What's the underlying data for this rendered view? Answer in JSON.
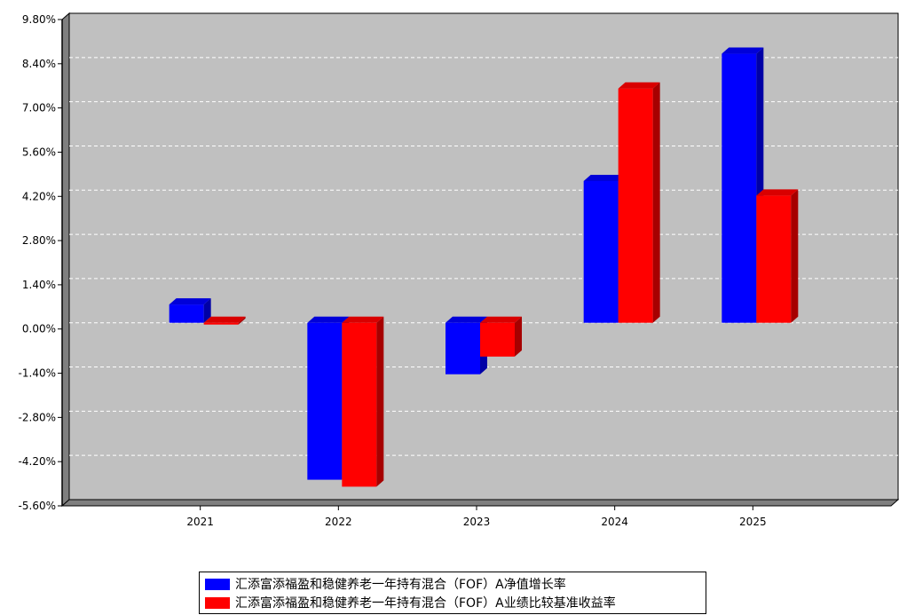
{
  "chart_data": {
    "type": "bar",
    "categories": [
      "2021",
      "2022",
      "2023",
      "2024",
      "2025"
    ],
    "series": [
      {
        "name": "汇添富添福盈和稳健养老一年持有混合（FOF）A净值增长率",
        "color": "#0000ff",
        "values": [
          0.58,
          -4.97,
          -1.63,
          4.49,
          8.52
        ]
      },
      {
        "name": "汇添富添福盈和稳健养老一年持有混合（FOF）A业绩比较基准收益率",
        "color": "#ff0000",
        "values": [
          -0.05,
          -5.19,
          -1.07,
          7.42,
          4.03
        ]
      }
    ],
    "y_ticks": [
      "9.80%",
      "8.40%",
      "7.00%",
      "5.60%",
      "4.20%",
      "2.80%",
      "1.40%",
      "0.00%",
      "-1.40%",
      "-2.80%",
      "-4.20%",
      "-5.60%"
    ],
    "ylim": [
      -5.6,
      9.8
    ],
    "grid": true,
    "legend_position": "bottom",
    "background_color": "#c0c0c0"
  }
}
